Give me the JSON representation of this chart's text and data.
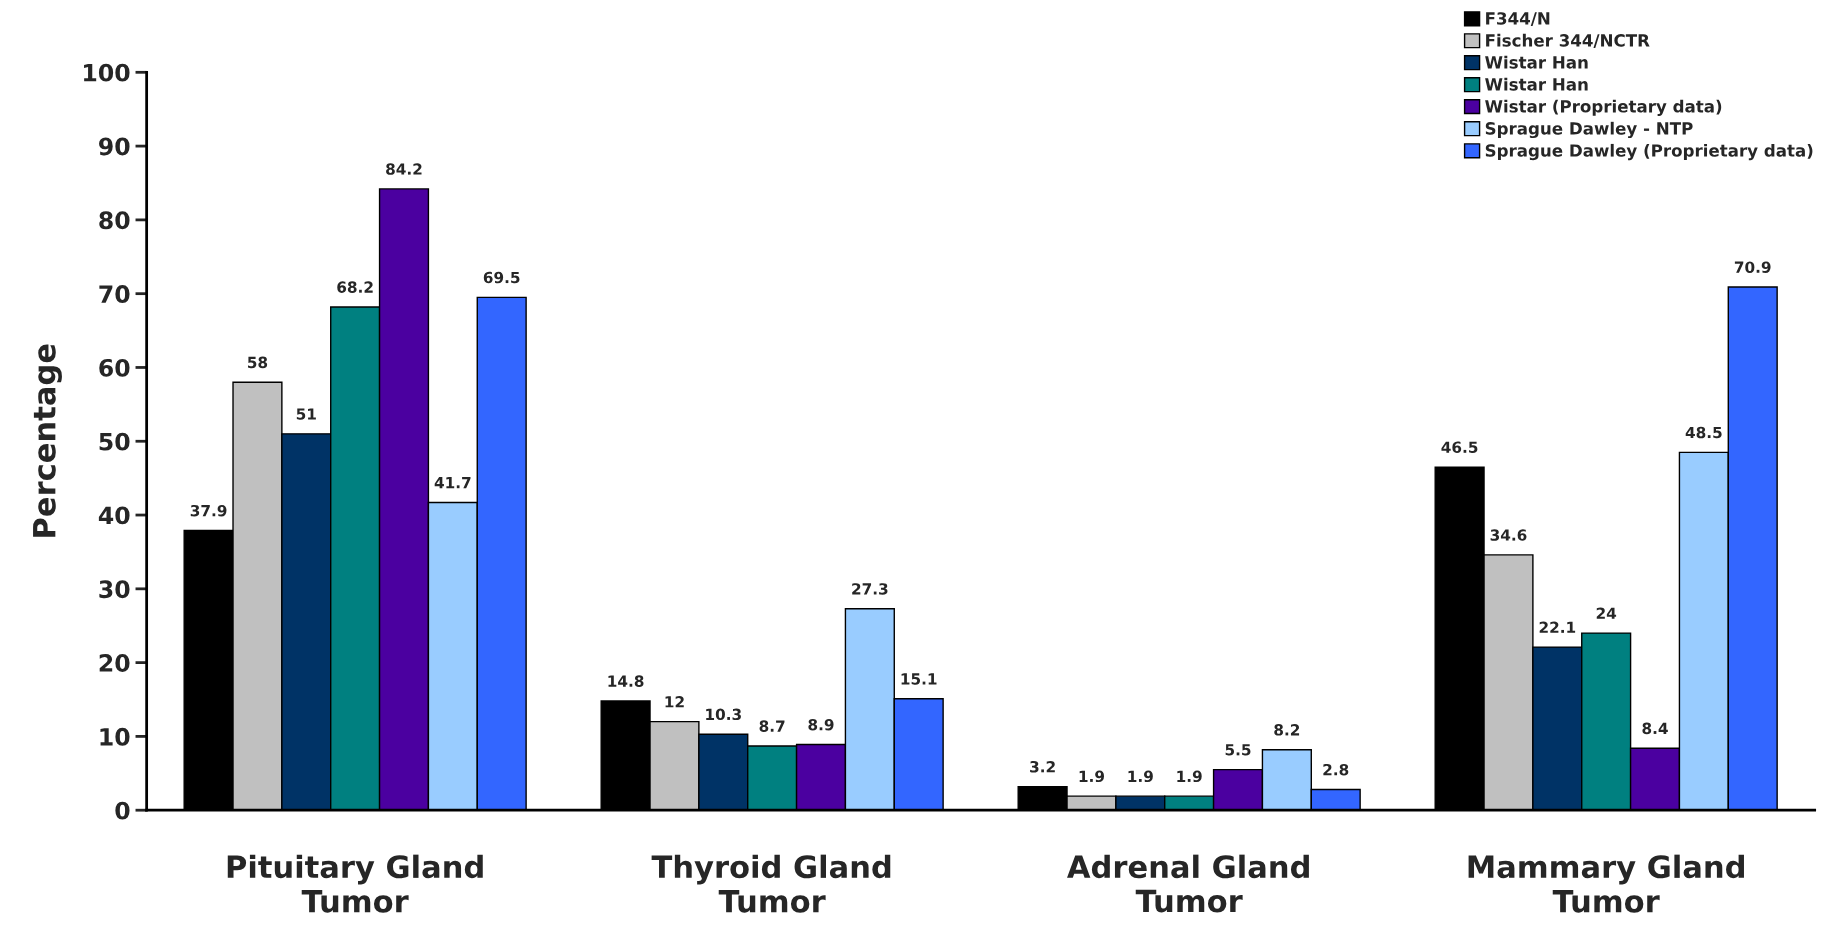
{
  "chart_data": {
    "type": "bar",
    "ylabel": "Percentage",
    "categories": [
      "Pituitary Gland\nTumor",
      "Thyroid Gland\nTumor",
      "Adrenal Gland\nTumor",
      "Mammary Gland\nTumor"
    ],
    "series": [
      {
        "name": "F344/N",
        "color": "#000000",
        "values": [
          37.9,
          14.8,
          3.2,
          46.5
        ]
      },
      {
        "name": "Fischer 344/NCTR",
        "color": "#c0c0c0",
        "values": [
          58,
          12,
          1.9,
          34.6
        ]
      },
      {
        "name": "Wistar Han",
        "color": "#003366",
        "values": [
          51,
          10.3,
          1.9,
          22.1
        ]
      },
      {
        "name": "Wistar Han",
        "color": "#008080",
        "values": [
          68.2,
          8.7,
          1.9,
          24
        ]
      },
      {
        "name": "Wistar (Proprietary data)",
        "color": "#4b00a0",
        "values": [
          84.2,
          8.9,
          5.5,
          8.4
        ]
      },
      {
        "name": "Sprague Dawley - NTP",
        "color": "#99ccff",
        "values": [
          41.7,
          27.3,
          8.2,
          48.5
        ]
      },
      {
        "name": "Sprague Dawley (Proprietary data)",
        "color": "#3366ff",
        "values": [
          69.5,
          15.1,
          2.8,
          70.9
        ]
      }
    ],
    "ylim": [
      0,
      100
    ],
    "yticks": [
      0,
      10,
      20,
      30,
      40,
      50,
      60,
      70,
      80,
      90,
      100
    ],
    "grid": false,
    "legend": "top right",
    "data_labels": true
  }
}
